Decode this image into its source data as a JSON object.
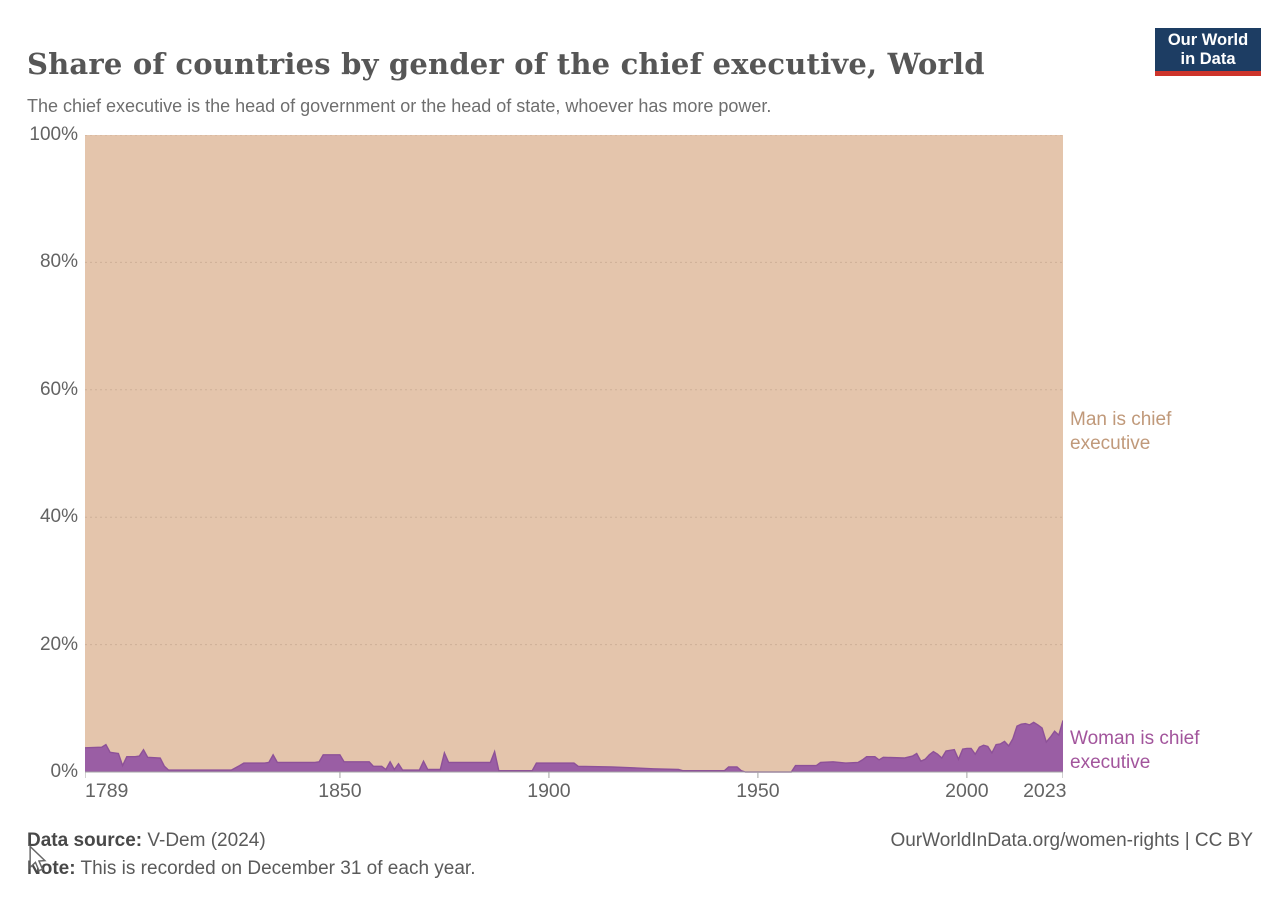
{
  "header": {
    "title": "Share of countries by gender of the chief executive, World",
    "subtitle": "The chief executive is the head of government or the head of state, whoever has more power."
  },
  "logo": {
    "line1": "Our World",
    "line2": "in Data",
    "bg_color": "#1d3d63",
    "accent_color": "#cd342b"
  },
  "chart_data": {
    "type": "area",
    "stacked": true,
    "unit": "%",
    "title": "Share of countries by gender of the chief executive, World",
    "x_range": [
      1789,
      2023
    ],
    "y_range": [
      0,
      100
    ],
    "x_ticks": [
      1789,
      1850,
      1900,
      1950,
      2000,
      2023
    ],
    "x_tick_labels": [
      "1789",
      "1850",
      "1900",
      "1950",
      "2000",
      "2023"
    ],
    "y_ticks": [
      0,
      20,
      40,
      60,
      80,
      100
    ],
    "y_tick_labels": [
      "0%",
      "20%",
      "40%",
      "60%",
      "80%",
      "100%"
    ],
    "grid": "horizontal-dashed",
    "legend_position": "labels-at-right-edge",
    "series": [
      {
        "name": "Woman is chief executive",
        "color": "#9a5ea4",
        "line_color": "#8d5198",
        "label_color": "#a2559c",
        "points": [
          [
            1789,
            3.8
          ],
          [
            1793,
            3.9
          ],
          [
            1794,
            4.3
          ],
          [
            1795,
            3.1
          ],
          [
            1797,
            2.9
          ],
          [
            1798,
            1.0
          ],
          [
            1799,
            2.4
          ],
          [
            1801,
            2.4
          ],
          [
            1802,
            2.5
          ],
          [
            1803,
            3.5
          ],
          [
            1804,
            2.3
          ],
          [
            1807,
            2.2
          ],
          [
            1808,
            0.9
          ],
          [
            1809,
            0.3
          ],
          [
            1824,
            0.3
          ],
          [
            1826,
            1.0
          ],
          [
            1827,
            1.4
          ],
          [
            1832,
            1.4
          ],
          [
            1833,
            1.5
          ],
          [
            1834,
            2.7
          ],
          [
            1835,
            1.5
          ],
          [
            1844,
            1.5
          ],
          [
            1845,
            1.6
          ],
          [
            1846,
            2.7
          ],
          [
            1850,
            2.7
          ],
          [
            1851,
            1.6
          ],
          [
            1857,
            1.6
          ],
          [
            1858,
            0.9
          ],
          [
            1860,
            0.9
          ],
          [
            1861,
            0.4
          ],
          [
            1862,
            1.6
          ],
          [
            1863,
            0.4
          ],
          [
            1864,
            1.3
          ],
          [
            1865,
            0.3
          ],
          [
            1869,
            0.3
          ],
          [
            1870,
            1.7
          ],
          [
            1871,
            0.4
          ],
          [
            1874,
            0.4
          ],
          [
            1875,
            3.0
          ],
          [
            1876,
            1.5
          ],
          [
            1886,
            1.5
          ],
          [
            1887,
            3.2
          ],
          [
            1888,
            0.2
          ],
          [
            1896,
            0.2
          ],
          [
            1897,
            1.4
          ],
          [
            1906,
            1.4
          ],
          [
            1907,
            0.9
          ],
          [
            1915,
            0.8
          ],
          [
            1925,
            0.5
          ],
          [
            1931,
            0.4
          ],
          [
            1932,
            0.2
          ],
          [
            1942,
            0.2
          ],
          [
            1943,
            0.8
          ],
          [
            1945,
            0.8
          ],
          [
            1946,
            0.2
          ],
          [
            1947,
            0.0
          ],
          [
            1958,
            0.0
          ],
          [
            1959,
            1.0
          ],
          [
            1964,
            1.0
          ],
          [
            1965,
            1.5
          ],
          [
            1968,
            1.6
          ],
          [
            1971,
            1.4
          ],
          [
            1974,
            1.5
          ],
          [
            1975,
            1.9
          ],
          [
            1976,
            2.4
          ],
          [
            1978,
            2.4
          ],
          [
            1979,
            1.9
          ],
          [
            1980,
            2.3
          ],
          [
            1985,
            2.2
          ],
          [
            1987,
            2.5
          ],
          [
            1988,
            2.9
          ],
          [
            1989,
            1.7
          ],
          [
            1990,
            2.0
          ],
          [
            1991,
            2.7
          ],
          [
            1992,
            3.2
          ],
          [
            1993,
            2.8
          ],
          [
            1994,
            2.2
          ],
          [
            1995,
            3.3
          ],
          [
            1996,
            3.4
          ],
          [
            1997,
            3.5
          ],
          [
            1998,
            2.0
          ],
          [
            1999,
            3.6
          ],
          [
            2000,
            3.7
          ],
          [
            2001,
            3.7
          ],
          [
            2002,
            2.8
          ],
          [
            2003,
            3.9
          ],
          [
            2004,
            4.2
          ],
          [
            2005,
            4.0
          ],
          [
            2006,
            3.0
          ],
          [
            2007,
            4.3
          ],
          [
            2008,
            4.4
          ],
          [
            2009,
            4.8
          ],
          [
            2010,
            4.1
          ],
          [
            2011,
            5.2
          ],
          [
            2012,
            7.2
          ],
          [
            2013,
            7.5
          ],
          [
            2014,
            7.6
          ],
          [
            2015,
            7.4
          ],
          [
            2016,
            7.8
          ],
          [
            2017,
            7.4
          ],
          [
            2018,
            6.9
          ],
          [
            2019,
            4.7
          ],
          [
            2020,
            5.5
          ],
          [
            2021,
            6.4
          ],
          [
            2022,
            5.8
          ],
          [
            2023,
            8.1
          ]
        ]
      },
      {
        "name": "Man is chief executive",
        "color": "#e4c5ac",
        "label_color": "#c0997a",
        "values_note": "complement of the woman series: 100 minus woman share, stacked to 100%"
      }
    ]
  },
  "footer": {
    "datasource_label": "Data source:",
    "datasource_value": " V-Dem (2024)",
    "note_label": "Note:",
    "note_value": " This is recorded on December 31 of each year.",
    "attribution": "OurWorldInData.org/women-rights | CC BY"
  }
}
